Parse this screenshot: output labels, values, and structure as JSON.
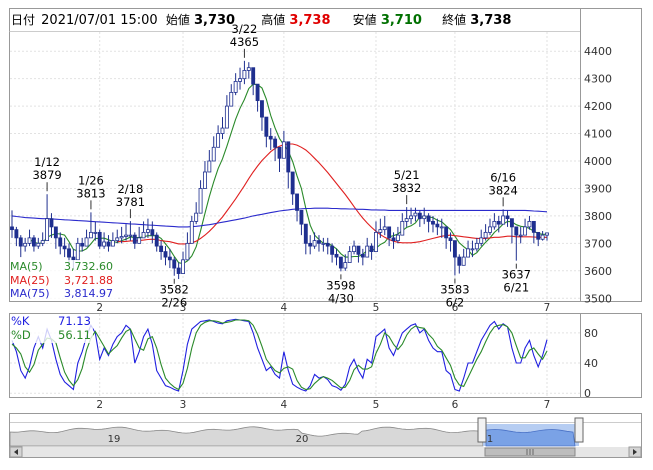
{
  "header": {
    "date_label": "日付",
    "datetime": "2021/07/01 15:00",
    "open_label": "始値",
    "open_value": "3,730",
    "high_label": "高値",
    "high_value": "3,738",
    "low_label": "安値",
    "low_value": "3,710",
    "close_label": "終値",
    "close_value": "3,738"
  },
  "colors": {
    "up": "#ffffff",
    "down": "#1f2f8f",
    "candle_stroke": "#1f2f8f",
    "ma5": "#2a8a2a",
    "ma25": "#e02020",
    "ma75": "#2a2acc",
    "k": "#2020e0",
    "d": "#2a8a2a",
    "high": "#e00000",
    "low": "#007000",
    "navigator_fill": "#a9c4f0"
  },
  "legend": {
    "ma5_label": "MA(5)",
    "ma5_value": "3,732.60",
    "ma25_label": "MA(25)",
    "ma25_value": "3,721.88",
    "ma75_label": "MA(75)",
    "ma75_value": "3,814.97",
    "k_label": "%K",
    "k_value": "71.13",
    "d_label": "%D",
    "d_value": "56.11"
  },
  "navigator": {
    "labels": [
      "19",
      "20",
      "1"
    ]
  },
  "chart_data": [
    {
      "type": "candlestick",
      "ylim": [
        3490,
        4470
      ],
      "y_ticks": [
        3500,
        3600,
        3700,
        3800,
        3900,
        4000,
        4100,
        4200,
        4300,
        4400
      ],
      "x_ticks": [
        {
          "label": "2",
          "index": 20
        },
        {
          "label": "3",
          "index": 39
        },
        {
          "label": "4",
          "index": 62
        },
        {
          "label": "5",
          "index": 83
        },
        {
          "label": "6",
          "index": 101
        },
        {
          "label": "7",
          "index": 122
        }
      ],
      "closes": [
        3750,
        3720,
        3690,
        3700,
        3720,
        3690,
        3700,
        3710,
        3790,
        3760,
        3720,
        3690,
        3680,
        3650,
        3640,
        3700,
        3690,
        3720,
        3740,
        3740,
        3690,
        3705,
        3690,
        3710,
        3720,
        3725,
        3730,
        3730,
        3700,
        3720,
        3740,
        3750,
        3730,
        3690,
        3670,
        3650,
        3640,
        3610,
        3590,
        3640,
        3700,
        3780,
        3810,
        3900,
        3960,
        4000,
        4050,
        4100,
        4120,
        4200,
        4250,
        4290,
        4300,
        4330,
        4340,
        4280,
        4220,
        4160,
        4090,
        4080,
        4050,
        4010,
        4070,
        3960,
        3880,
        3820,
        3770,
        3700,
        3690,
        3710,
        3700,
        3700,
        3690,
        3660,
        3650,
        3610,
        3630,
        3670,
        3690,
        3660,
        3650,
        3690,
        3670,
        3740,
        3750,
        3760,
        3720,
        3710,
        3730,
        3780,
        3790,
        3800,
        3810,
        3790,
        3800,
        3780,
        3770,
        3760,
        3760,
        3720,
        3710,
        3650,
        3620,
        3650,
        3680,
        3680,
        3700,
        3720,
        3740,
        3760,
        3780,
        3770,
        3800,
        3790,
        3760,
        3730,
        3730,
        3760,
        3780,
        3740,
        3715,
        3730,
        3738
      ],
      "highs": [
        3820,
        3760,
        3730,
        3720,
        3750,
        3730,
        3720,
        3740,
        3879,
        3810,
        3760,
        3740,
        3720,
        3700,
        3680,
        3720,
        3720,
        3750,
        3813,
        3780,
        3750,
        3740,
        3730,
        3740,
        3750,
        3760,
        3770,
        3781,
        3740,
        3760,
        3780,
        3790,
        3780,
        3740,
        3710,
        3690,
        3680,
        3650,
        3630,
        3670,
        3740,
        3800,
        3850,
        3930,
        4000,
        4040,
        4090,
        4130,
        4160,
        4240,
        4280,
        4320,
        4340,
        4365,
        4360,
        4320,
        4260,
        4200,
        4130,
        4120,
        4090,
        4050,
        4110,
        4010,
        3920,
        3860,
        3810,
        3750,
        3730,
        3740,
        3730,
        3720,
        3720,
        3700,
        3680,
        3650,
        3660,
        3690,
        3710,
        3690,
        3680,
        3720,
        3700,
        3780,
        3790,
        3800,
        3760,
        3740,
        3760,
        3810,
        3832,
        3830,
        3830,
        3820,
        3830,
        3810,
        3800,
        3790,
        3790,
        3760,
        3740,
        3690,
        3660,
        3680,
        3710,
        3710,
        3720,
        3750,
        3770,
        3790,
        3810,
        3800,
        3824,
        3820,
        3790,
        3760,
        3760,
        3790,
        3800,
        3770,
        3740,
        3745,
        3738
      ],
      "lows": [
        3720,
        3690,
        3650,
        3670,
        3690,
        3670,
        3680,
        3690,
        3740,
        3720,
        3680,
        3660,
        3650,
        3620,
        3605,
        3660,
        3670,
        3690,
        3720,
        3710,
        3680,
        3680,
        3670,
        3690,
        3700,
        3700,
        3710,
        3710,
        3680,
        3700,
        3720,
        3720,
        3700,
        3670,
        3640,
        3620,
        3610,
        3582,
        3570,
        3600,
        3650,
        3720,
        3770,
        3860,
        3920,
        3960,
        4000,
        4060,
        4080,
        4160,
        4200,
        4240,
        4260,
        4280,
        4300,
        4240,
        4180,
        4110,
        4050,
        4040,
        4000,
        3960,
        4010,
        3900,
        3840,
        3780,
        3730,
        3660,
        3660,
        3680,
        3670,
        3670,
        3660,
        3630,
        3620,
        3598,
        3600,
        3640,
        3660,
        3630,
        3620,
        3660,
        3640,
        3710,
        3720,
        3730,
        3690,
        3680,
        3700,
        3750,
        3760,
        3770,
        3780,
        3760,
        3770,
        3740,
        3740,
        3730,
        3720,
        3680,
        3670,
        3583,
        3590,
        3620,
        3650,
        3650,
        3670,
        3690,
        3710,
        3730,
        3750,
        3740,
        3770,
        3760,
        3700,
        3637,
        3700,
        3730,
        3750,
        3700,
        3690,
        3710,
        3710
      ],
      "series": [
        {
          "name": "MA(5)",
          "values": [
            null,
            null,
            null,
            null,
            3716,
            3704,
            3700,
            3702,
            3722,
            3730,
            3736,
            3734,
            3730,
            3706,
            3678,
            3672,
            3672,
            3680,
            3698,
            3718,
            3718,
            3719,
            3713,
            3707,
            3703,
            3710,
            3715,
            3723,
            3721,
            3721,
            3724,
            3728,
            3728,
            3728,
            3718,
            3698,
            3678,
            3652,
            3630,
            3626,
            3636,
            3654,
            3688,
            3746,
            3810,
            3870,
            3924,
            3972,
            4008,
            4054,
            4104,
            4152,
            4192,
            4224,
            4264,
            4280,
            4278,
            4266,
            4226,
            4166,
            4120,
            4082,
            4058,
            4036,
            3998,
            3946,
            3900,
            3828,
            3766,
            3730,
            3714,
            3700,
            3700,
            3692,
            3680,
            3662,
            3650,
            3650,
            3652,
            3652,
            3660,
            3674,
            3672,
            3682,
            3696,
            3704,
            3724,
            3728,
            3734,
            3746,
            3758,
            3764,
            3774,
            3796,
            3796,
            3796,
            3794,
            3784,
            3778,
            3764,
            3750,
            3726,
            3702,
            3688,
            3676,
            3656,
            3666,
            3686,
            3704,
            3720,
            3740,
            3754,
            3770,
            3780,
            3778,
            3768,
            3762,
            3760,
            3754,
            3744,
            3736,
            3733,
            3733
          ]
        },
        {
          "name": "MA(25)",
          "values": [
            null,
            null,
            null,
            null,
            null,
            null,
            null,
            null,
            null,
            null,
            null,
            null,
            null,
            null,
            null,
            null,
            null,
            null,
            null,
            null,
            null,
            null,
            null,
            null,
            3707,
            3706,
            3707,
            3709,
            3709,
            3710,
            3712,
            3714,
            3715,
            3714,
            3710,
            3708,
            3706,
            3702,
            3698,
            3698,
            3698,
            3702,
            3708,
            3718,
            3730,
            3744,
            3760,
            3778,
            3796,
            3818,
            3840,
            3862,
            3886,
            3910,
            3936,
            3960,
            3982,
            4002,
            4018,
            4034,
            4046,
            4054,
            4060,
            4062,
            4062,
            4058,
            4050,
            4040,
            4026,
            4010,
            3994,
            3976,
            3958,
            3938,
            3918,
            3898,
            3878,
            3856,
            3834,
            3812,
            3792,
            3774,
            3758,
            3744,
            3732,
            3722,
            3714,
            3708,
            3704,
            3702,
            3702,
            3702,
            3704,
            3706,
            3710,
            3714,
            3718,
            3722,
            3726,
            3728,
            3730,
            3728,
            3726,
            3724,
            3722,
            3720,
            3718,
            3718,
            3718,
            3720,
            3722,
            3722,
            3724,
            3726,
            3726,
            3724,
            3724,
            3724,
            3724,
            3723,
            3722,
            3722,
            3722
          ]
        },
        {
          "name": "MA(75)",
          "values": [
            3800,
            3798,
            3796,
            3794,
            3793,
            3792,
            3791,
            3790,
            3790,
            3789,
            3788,
            3787,
            3786,
            3785,
            3784,
            3783,
            3782,
            3781,
            3780,
            3779,
            3778,
            3777,
            3776,
            3775,
            3774,
            3773,
            3772,
            3771,
            3770,
            3769,
            3768,
            3767,
            3766,
            3765,
            3764,
            3763,
            3762,
            3761,
            3760,
            3760,
            3760,
            3761,
            3762,
            3764,
            3766,
            3768,
            3771,
            3774,
            3777,
            3780,
            3783,
            3786,
            3789,
            3792,
            3796,
            3800,
            3803,
            3806,
            3809,
            3812,
            3815,
            3818,
            3820,
            3822,
            3824,
            3825,
            3826,
            3827,
            3827,
            3828,
            3828,
            3828,
            3828,
            3827,
            3827,
            3826,
            3826,
            3825,
            3825,
            3824,
            3824,
            3823,
            3822,
            3822,
            3821,
            3821,
            3820,
            3820,
            3820,
            3820,
            3820,
            3820,
            3820,
            3820,
            3820,
            3820,
            3820,
            3820,
            3820,
            3820,
            3820,
            3820,
            3820,
            3820,
            3820,
            3820,
            3820,
            3820,
            3820,
            3820,
            3820,
            3820,
            3820,
            3820,
            3820,
            3820,
            3820,
            3820,
            3819,
            3818,
            3817,
            3816,
            3815
          ]
        }
      ],
      "annotations": [
        {
          "index": 8,
          "lines": [
            "1/12",
            "3879"
          ],
          "pos": "above"
        },
        {
          "index": 18,
          "lines": [
            "1/26",
            "3813"
          ],
          "pos": "above"
        },
        {
          "index": 27,
          "lines": [
            "2/18",
            "3781"
          ],
          "pos": "above"
        },
        {
          "index": 53,
          "lines": [
            "3/22",
            "4365"
          ],
          "pos": "above"
        },
        {
          "index": 90,
          "lines": [
            "5/21",
            "3832"
          ],
          "pos": "above"
        },
        {
          "index": 112,
          "lines": [
            "6/16",
            "3824"
          ],
          "pos": "above"
        },
        {
          "index": 37,
          "lines": [
            "3582",
            "2/26"
          ],
          "pos": "below"
        },
        {
          "index": 75,
          "lines": [
            "3598",
            "4/30"
          ],
          "pos": "below"
        },
        {
          "index": 101,
          "lines": [
            "3583",
            "6/2"
          ],
          "pos": "below"
        },
        {
          "index": 115,
          "lines": [
            "3637",
            "6/21"
          ],
          "pos": "below"
        }
      ]
    },
    {
      "type": "line",
      "ylim": [
        -5,
        105
      ],
      "y_ticks": [
        0,
        40,
        80
      ],
      "series": [
        {
          "name": "%K",
          "values": [
            70,
            55,
            30,
            20,
            35,
            60,
            75,
            60,
            85,
            70,
            45,
            25,
            15,
            10,
            5,
            40,
            55,
            75,
            90,
            80,
            45,
            60,
            50,
            65,
            75,
            80,
            90,
            85,
            40,
            55,
            75,
            85,
            65,
            30,
            20,
            10,
            8,
            5,
            3,
            30,
            65,
            85,
            90,
            95,
            96,
            97,
            95,
            93,
            92,
            96,
            97,
            98,
            97,
            96,
            95,
            80,
            60,
            45,
            30,
            35,
            25,
            20,
            55,
            30,
            12,
            8,
            5,
            3,
            10,
            25,
            20,
            22,
            18,
            10,
            8,
            4,
            12,
            35,
            45,
            30,
            20,
            45,
            40,
            75,
            80,
            85,
            60,
            50,
            65,
            80,
            85,
            90,
            92,
            80,
            85,
            70,
            60,
            55,
            55,
            30,
            25,
            5,
            3,
            20,
            40,
            40,
            55,
            70,
            80,
            90,
            95,
            85,
            92,
            88,
            60,
            40,
            40,
            60,
            70,
            50,
            35,
            50,
            71
          ]
        },
        {
          "name": "%D",
          "values": [
            65,
            60,
            52,
            35,
            28,
            38,
            57,
            65,
            73,
            72,
            67,
            47,
            28,
            17,
            10,
            18,
            33,
            57,
            73,
            82,
            72,
            62,
            52,
            58,
            63,
            73,
            82,
            85,
            72,
            60,
            57,
            72,
            75,
            60,
            38,
            20,
            13,
            8,
            5,
            13,
            33,
            60,
            80,
            90,
            94,
            96,
            96,
            95,
            93,
            94,
            95,
            97,
            97,
            97,
            96,
            90,
            78,
            62,
            45,
            37,
            30,
            27,
            33,
            35,
            32,
            17,
            8,
            5,
            6,
            13,
            18,
            22,
            20,
            17,
            12,
            7,
            8,
            17,
            31,
            37,
            32,
            32,
            35,
            53,
            65,
            80,
            75,
            65,
            58,
            65,
            77,
            85,
            89,
            87,
            86,
            78,
            72,
            62,
            57,
            47,
            37,
            20,
            11,
            9,
            21,
            33,
            45,
            55,
            68,
            80,
            88,
            90,
            91,
            88,
            80,
            63,
            47,
            47,
            57,
            60,
            52,
            45,
            56
          ]
        }
      ]
    }
  ]
}
